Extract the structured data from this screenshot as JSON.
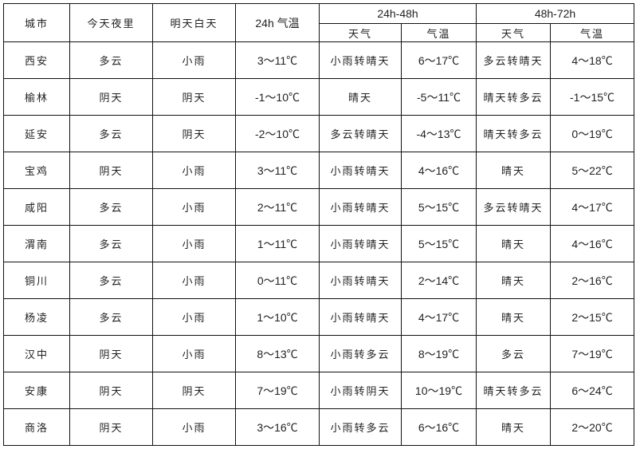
{
  "header": {
    "city": "城市",
    "tonight": "今天夜里",
    "tomorrow_day": "明天白天",
    "temp_24h": "24h 气温",
    "period_24_48": "24h-48h",
    "period_48_72": "48h-72h",
    "weather": "天气",
    "temp": "气温"
  },
  "rows": [
    [
      "西安",
      "多云",
      "小雨",
      "3～11℃",
      "小雨转晴天",
      "6～17℃",
      "多云转晴天",
      "4～18℃"
    ],
    [
      "榆林",
      "阴天",
      "阴天",
      "-1～10℃",
      "晴天",
      "-5～11℃",
      "晴天转多云",
      "-1～15℃"
    ],
    [
      "延安",
      "多云",
      "阴天",
      "-2～10℃",
      "多云转晴天",
      "-4～13℃",
      "晴天转多云",
      "0～19℃"
    ],
    [
      "宝鸡",
      "阴天",
      "小雨",
      "3～11℃",
      "小雨转晴天",
      "4～16℃",
      "晴天",
      "5～22℃"
    ],
    [
      "咸阳",
      "多云",
      "小雨",
      "2～11℃",
      "小雨转晴天",
      "5～15℃",
      "多云转晴天",
      "4～17℃"
    ],
    [
      "渭南",
      "多云",
      "小雨",
      "1～11℃",
      "小雨转晴天",
      "5～15℃",
      "晴天",
      "4～16℃"
    ],
    [
      "铜川",
      "多云",
      "小雨",
      "0～11℃",
      "小雨转晴天",
      "2～14℃",
      "晴天",
      "2～16℃"
    ],
    [
      "杨凌",
      "多云",
      "小雨",
      "1～10℃",
      "小雨转晴天",
      "4～17℃",
      "晴天",
      "2～15℃"
    ],
    [
      "汉中",
      "阴天",
      "小雨",
      "8～13℃",
      "小雨转多云",
      "8～19℃",
      "多云",
      "7～19℃"
    ],
    [
      "安康",
      "阴天",
      "阴天",
      "7～19℃",
      "小雨转阴天",
      "10～19℃",
      "晴天转多云",
      "6～24℃"
    ],
    [
      "商洛",
      "阴天",
      "小雨",
      "3～16℃",
      "小雨转多云",
      "6～16℃",
      "晴天",
      "2～20℃"
    ]
  ]
}
